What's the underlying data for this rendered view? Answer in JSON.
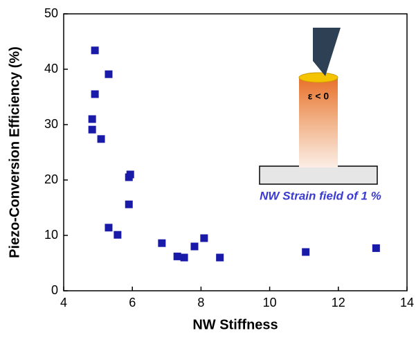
{
  "chart_data": {
    "type": "scatter",
    "xlabel": "NW Stiffness",
    "ylabel": "Piezo-Conversion Efficiency (%)",
    "xlim": [
      4,
      14
    ],
    "xticks": [
      4,
      6,
      8,
      10,
      12,
      14
    ],
    "ylim": [
      0,
      50
    ],
    "yticks": [
      0,
      10,
      20,
      30,
      40,
      50
    ],
    "color": "#1a1aa8",
    "x": [
      4.91,
      5.31,
      4.91,
      4.83,
      4.83,
      5.09,
      5.94,
      5.9,
      5.9,
      5.31,
      5.57,
      6.86,
      7.31,
      7.51,
      7.81,
      8.09,
      8.55,
      11.05,
      13.1
    ],
    "y": [
      43.4,
      39.1,
      35.5,
      31.0,
      29.1,
      27.4,
      21.0,
      20.5,
      15.6,
      11.4,
      10.1,
      8.6,
      6.2,
      6.0,
      8.0,
      9.5,
      6.0,
      7.0,
      7.7
    ],
    "annotations": [
      "ε < 0",
      "NW Strain field of 1 %"
    ]
  }
}
